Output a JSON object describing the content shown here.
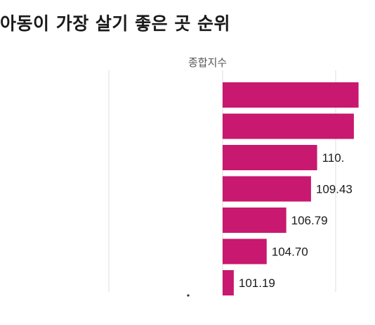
{
  "title": "아동이 가장 살기 좋은 곳 순위",
  "chart_data": {
    "type": "bar",
    "orientation": "horizontal",
    "title": "아동이 가장 살기 좋은 곳 순위",
    "xlabel": "종합지수",
    "ylabel": "",
    "grid": true,
    "bar_color": "#c8186f",
    "xlim": [
      100,
      115
    ],
    "categories": [
      "",
      "",
      "",
      "",
      "",
      "",
      ""
    ],
    "values": [
      114.5,
      114.0,
      110.08,
      109.43,
      106.79,
      104.7,
      101.19
    ],
    "labels": [
      "",
      "",
      "110.",
      "109.43",
      "106.79",
      "104.70",
      "101.19"
    ]
  }
}
